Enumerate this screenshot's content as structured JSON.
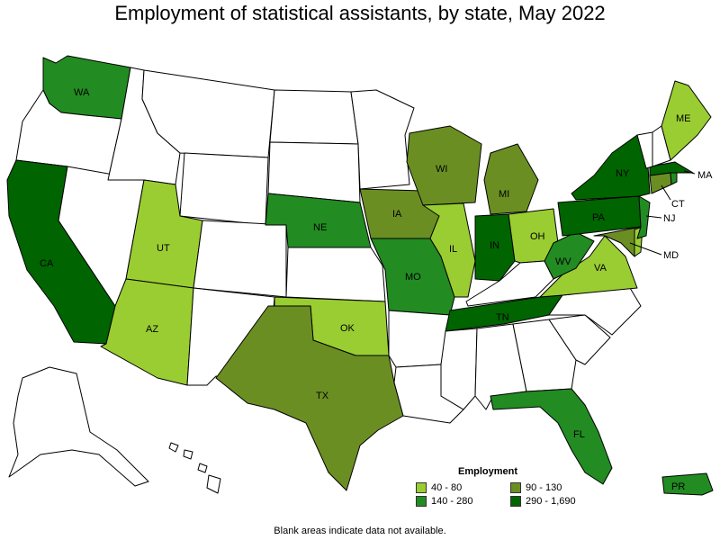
{
  "title": "Employment of statistical assistants, by state, May 2022",
  "colors": {
    "none": "#ffffff",
    "c40_80": "#9acd32",
    "c90_130": "#6b8e23",
    "c140_280": "#228b22",
    "c290_1690": "#006400"
  },
  "legend": {
    "title": "Employment",
    "items": [
      {
        "label": "40 - 80",
        "color": "#9acd32"
      },
      {
        "label": "90 - 130",
        "color": "#6b8e23"
      },
      {
        "label": "140 - 280",
        "color": "#228b22"
      },
      {
        "label": "290 - 1,690",
        "color": "#006400"
      }
    ]
  },
  "labels": {
    "WA": "WA",
    "CA": "CA",
    "UT": "UT",
    "AZ": "AZ",
    "NE": "NE",
    "OK": "OK",
    "TX": "TX",
    "IA": "IA",
    "MO": "MO",
    "WI": "WI",
    "IL": "IL",
    "MI": "MI",
    "IN": "IN",
    "OH": "OH",
    "TN": "TN",
    "WV": "WV",
    "VA": "VA",
    "PA": "PA",
    "NY": "NY",
    "ME": "ME",
    "MA": "MA",
    "CT": "CT",
    "NJ": "NJ",
    "MD": "MD",
    "FL": "FL",
    "PR": "PR"
  },
  "footnote": "Blank areas indicate data not available."
}
